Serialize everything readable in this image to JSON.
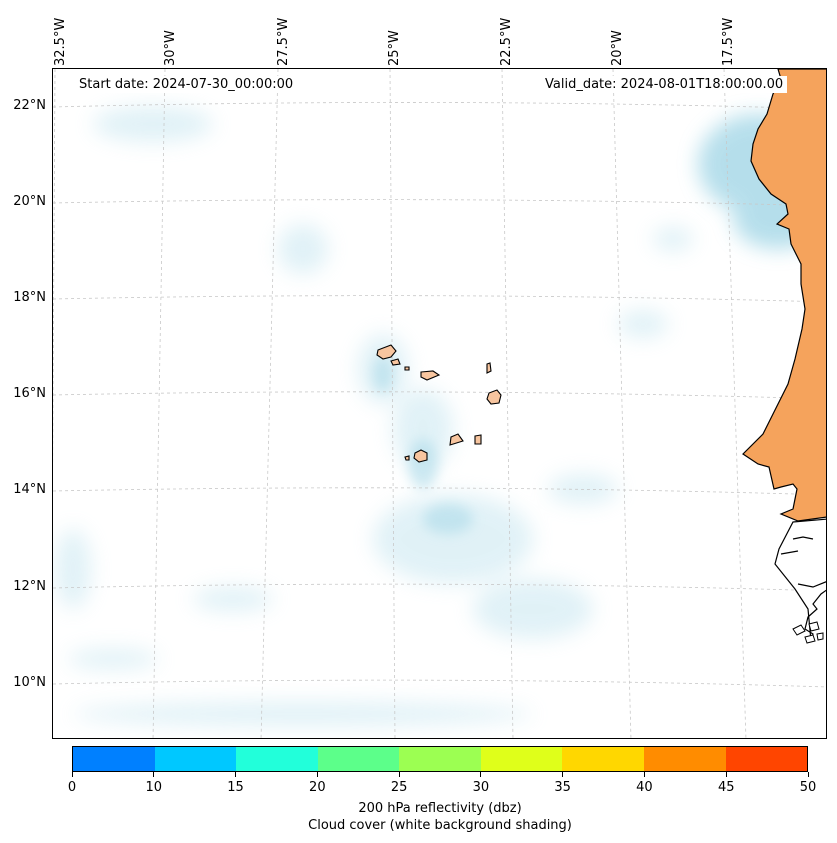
{
  "map": {
    "start_date": "Start date: 2024-07-30_00:00:00",
    "valid_date": "Valid_date: 2024-08-01T18:00:00.00",
    "lon_labels": [
      "32.5°W",
      "30°W",
      "27.5°W",
      "25°W",
      "22.5°W",
      "20°W",
      "17.5°W"
    ],
    "lat_labels": [
      "22°N",
      "20°N",
      "18°N",
      "16°N",
      "14°N",
      "12°N",
      "10°N"
    ],
    "land_color": "#f5a35c",
    "island_fill": "#f7c59f",
    "cloud_color": "#a9d9e8"
  },
  "colorbar": {
    "ticks": [
      "0",
      "10",
      "15",
      "20",
      "25",
      "30",
      "35",
      "40",
      "45",
      "50"
    ],
    "colors": [
      "#0080ff",
      "#00c8ff",
      "#22ffda",
      "#5cff8a",
      "#9cff52",
      "#dfff1a",
      "#ffd700",
      "#ff8c00",
      "#ff4500"
    ],
    "label_line1": "200 hPa reflectivity (dbz)",
    "label_line2": "Cloud cover (white background shading)"
  }
}
